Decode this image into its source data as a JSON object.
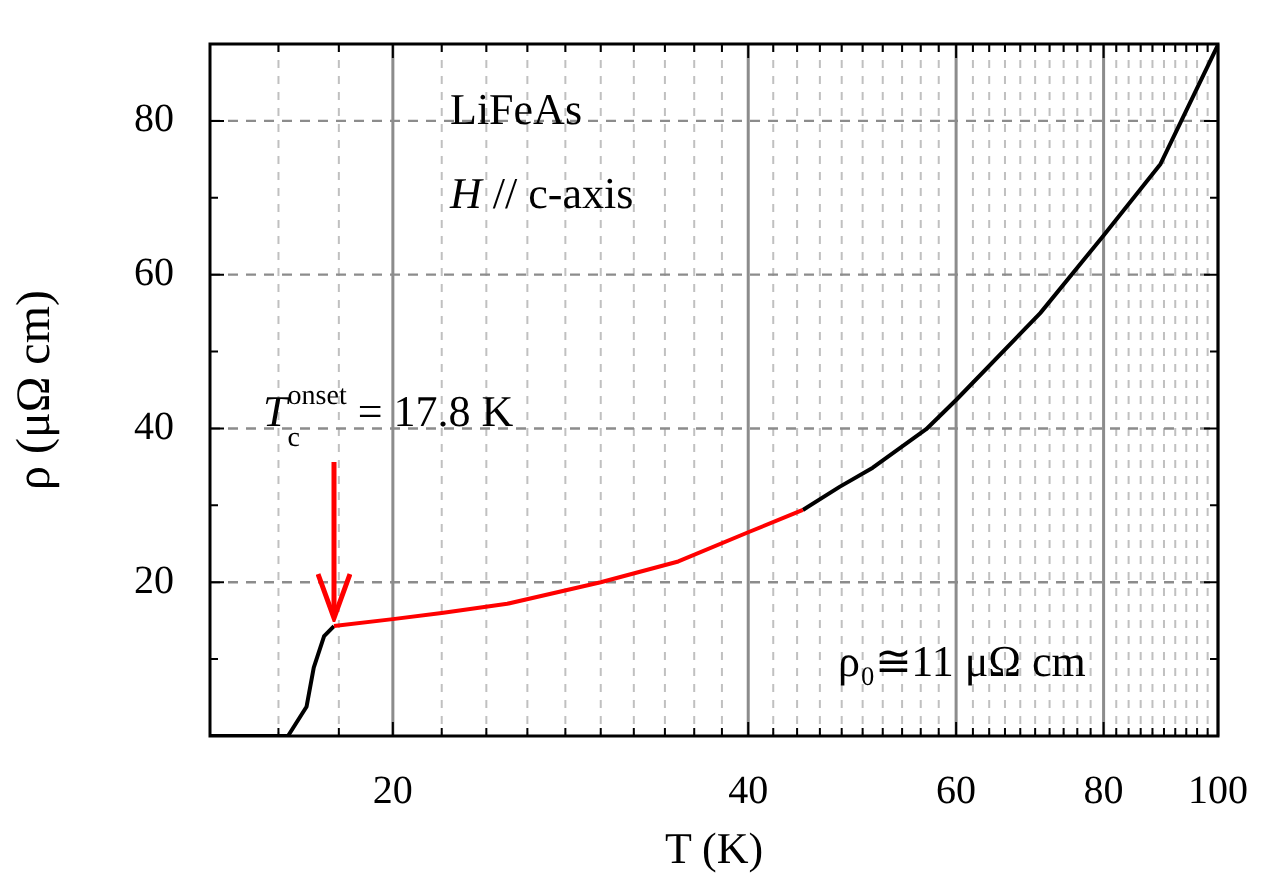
{
  "chart_data": {
    "type": "line",
    "xlabel": "T (K)",
    "ylabel": "ρ (μΩ cm)",
    "log": "x",
    "grid": true,
    "marker": "none",
    "xlim": [
      14,
      100
    ],
    "ylim": [
      0,
      90
    ],
    "xticks": [
      {
        "value": 16,
        "label": null
      },
      {
        "value": 18,
        "label": null
      },
      20,
      {
        "value": 22,
        "label": null
      },
      {
        "value": 24,
        "label": null
      },
      {
        "value": 26,
        "label": null
      },
      {
        "value": 28,
        "label": null
      },
      {
        "value": 30,
        "label": null
      },
      {
        "value": 32,
        "label": null
      },
      {
        "value": 34,
        "label": null
      },
      {
        "value": 36,
        "label": null
      },
      {
        "value": 38,
        "label": null
      },
      40,
      {
        "value": 42,
        "label": null
      },
      {
        "value": 44,
        "label": null
      },
      {
        "value": 46,
        "label": null
      },
      {
        "value": 48,
        "label": null
      },
      {
        "value": 50,
        "label": null
      },
      {
        "value": 52,
        "label": null
      },
      {
        "value": 54,
        "label": null
      },
      {
        "value": 56,
        "label": null
      },
      {
        "value": 58,
        "label": null
      },
      60,
      {
        "value": 62,
        "label": null
      },
      {
        "value": 64,
        "label": null
      },
      {
        "value": 66,
        "label": null
      },
      {
        "value": 68,
        "label": null
      },
      {
        "value": 70,
        "label": null
      },
      {
        "value": 72,
        "label": null
      },
      {
        "value": 74,
        "label": null
      },
      {
        "value": 76,
        "label": null
      },
      {
        "value": 78,
        "label": null
      },
      80,
      {
        "value": 82,
        "label": null
      },
      {
        "value": 84,
        "label": null
      },
      {
        "value": 86,
        "label": null
      },
      {
        "value": 88,
        "label": null
      },
      {
        "value": 90,
        "label": null
      },
      {
        "value": 92,
        "label": null
      },
      {
        "value": 94,
        "label": null
      },
      {
        "value": 96,
        "label": null
      },
      {
        "value": 98,
        "label": null
      },
      100
    ],
    "yticks": [
      {
        "value": 10,
        "label": null
      },
      20,
      {
        "value": 30,
        "label": null
      },
      40,
      {
        "value": 50,
        "label": null
      },
      60,
      {
        "value": 70,
        "label": null
      },
      80
    ],
    "series": [
      {
        "color": "#000000",
        "x": [
          14,
          16.3,
          16.9,
          17.14,
          17.49,
          17.83,
          20,
          22,
          25,
          30,
          34.9,
          40,
          44.5,
          47.8,
          51,
          56.6,
          60,
          70.7,
          80,
          89.4,
          100
        ],
        "values": [
          0,
          0,
          3.8,
          8.9,
          13,
          14.3,
          null,
          null,
          null,
          null,
          null,
          null,
          29.4,
          32.4,
          34.9,
          39.9,
          43.7,
          55,
          65.1,
          74.4,
          89.9
        ]
      },
      {
        "color": "#ff0000",
        "x": [
          17.83,
          20,
          22,
          25,
          30,
          34.9,
          40,
          44.5
        ],
        "values": [
          14.3,
          15.2,
          16,
          17.2,
          20,
          22.7,
          26.5,
          29.4
        ]
      }
    ],
    "annotations": [
      "LiFeAs",
      "H // c-axis",
      {
        "text": "T$_{c}$$^{onset}$ = 17.8 K",
        "x": 17.8,
        "y": 14.3
      },
      "ρ₀≅11 μΩ cm"
    ]
  }
}
